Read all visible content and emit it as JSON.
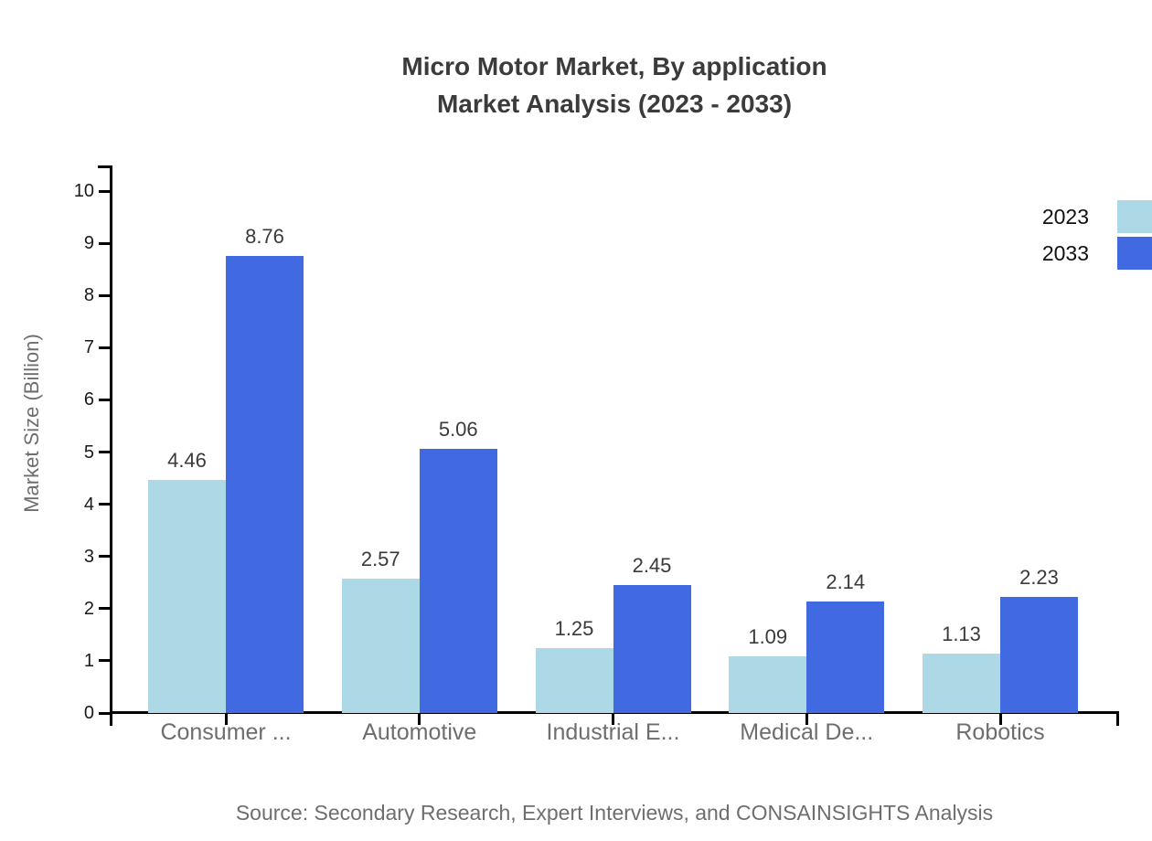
{
  "title": {
    "line1": "Micro Motor Market, By application",
    "line2": "Market Analysis (2023 - 2033)"
  },
  "source": "Source: Secondary Research, Expert Interviews, and CONSAINSIGHTS Analysis",
  "chart_data": {
    "type": "bar",
    "categories": [
      "Consumer ...",
      "Automotive",
      "Industrial E...",
      "Medical De...",
      "Robotics"
    ],
    "series": [
      {
        "name": "2023",
        "color": "#ADD8E6",
        "values": [
          4.46,
          2.57,
          1.25,
          1.09,
          1.13
        ]
      },
      {
        "name": "2033",
        "color": "#4169E1",
        "values": [
          8.76,
          5.06,
          2.45,
          2.14,
          2.23
        ]
      }
    ],
    "title": "Micro Motor Market, By application Market Analysis (2023 - 2033)",
    "xlabel": "",
    "ylabel": "Market Size (Billion)",
    "ylim": [
      0,
      10
    ],
    "yticks": [
      0,
      1,
      2,
      3,
      4,
      5,
      6,
      7,
      8,
      9,
      10
    ],
    "grid": false,
    "legend_position": "top-right",
    "axis_color": "#000000"
  }
}
